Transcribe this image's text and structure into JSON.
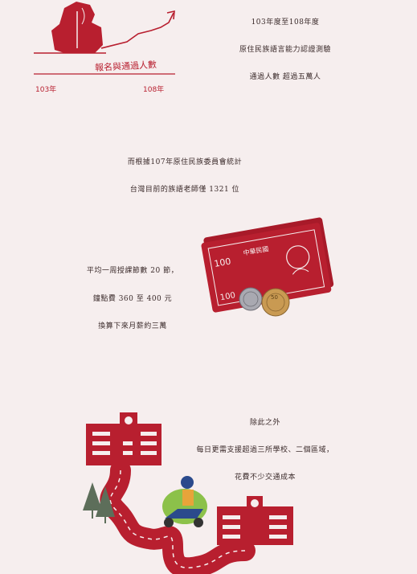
{
  "section1": {
    "lines": [
      "103年度至108年度",
      "原住民族語言能力認證測驗",
      "通過人數 超過五萬人"
    ],
    "chart_label": "報名與通過人數",
    "year_start": "103年",
    "year_end": "108年"
  },
  "section2": {
    "lines": [
      "而根據107年原住民族委員會統計",
      "台灣目前的族語老師僅 1321 位"
    ]
  },
  "section3": {
    "lines": [
      "平均一周授課節數 20 節，",
      "鐘點費 360 至 400 元",
      "換算下來月薪約三萬"
    ],
    "bill_value": "100",
    "bill_text": "中華民國",
    "coin_value": "50"
  },
  "section4": {
    "lines": [
      "除此之外",
      "每日更需支援超過三所學校、二個區域，",
      "花費不少交通成本"
    ]
  },
  "colors": {
    "accent": "#b81f2f",
    "background": "#f6eeee"
  }
}
